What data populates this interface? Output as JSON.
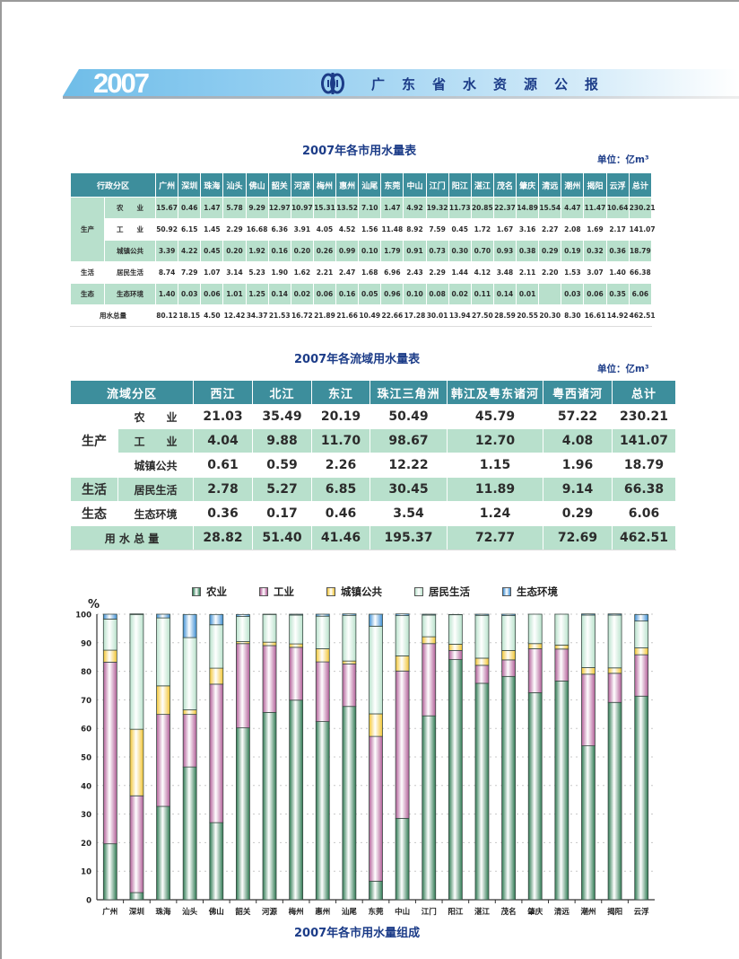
{
  "header": {
    "year": "2007",
    "title": "广东省水资源公报",
    "logo_icon": "water-resources-logo-icon"
  },
  "table1": {
    "caption": "2007年各市用水量表",
    "unit": "单位：亿m³",
    "corner_header": "行政分区",
    "columns": [
      "广州",
      "深圳",
      "珠海",
      "汕头",
      "佛山",
      "韶关",
      "河源",
      "梅州",
      "惠州",
      "汕尾",
      "东莞",
      "中山",
      "江门",
      "阳江",
      "湛江",
      "茂名",
      "肇庆",
      "清远",
      "潮州",
      "揭阳",
      "云浮",
      "总计"
    ],
    "groups": {
      "production": "生产",
      "living": "生活",
      "ecology": "生态"
    },
    "rows": [
      {
        "group": "生产",
        "label": "农　　业",
        "values": [
          "15.67",
          "0.46",
          "1.47",
          "5.78",
          "9.29",
          "12.97",
          "10.97",
          "15.31",
          "13.52",
          "7.10",
          "1.47",
          "4.92",
          "19.32",
          "11.73",
          "20.85",
          "22.37",
          "14.89",
          "15.54",
          "4.47",
          "11.47",
          "10.64",
          "230.21"
        ]
      },
      {
        "group": "生产",
        "label": "工　　业",
        "values": [
          "50.92",
          "6.15",
          "1.45",
          "2.29",
          "16.68",
          "6.36",
          "3.91",
          "4.05",
          "4.52",
          "1.56",
          "11.48",
          "8.92",
          "7.59",
          "0.45",
          "1.72",
          "1.67",
          "3.16",
          "2.27",
          "2.08",
          "1.69",
          "2.17",
          "141.07"
        ]
      },
      {
        "group": "生产",
        "label": "城镇公共",
        "values": [
          "3.39",
          "4.22",
          "0.45",
          "0.20",
          "1.92",
          "0.16",
          "0.20",
          "0.26",
          "0.99",
          "0.10",
          "1.79",
          "0.91",
          "0.73",
          "0.30",
          "0.70",
          "0.93",
          "0.38",
          "0.29",
          "0.19",
          "0.32",
          "0.36",
          "18.79"
        ]
      },
      {
        "group": "生活",
        "label": "居民生活",
        "values": [
          "8.74",
          "7.29",
          "1.07",
          "3.14",
          "5.23",
          "1.90",
          "1.62",
          "2.21",
          "2.47",
          "1.68",
          "6.96",
          "2.43",
          "2.29",
          "1.44",
          "4.12",
          "3.48",
          "2.11",
          "2.20",
          "1.53",
          "3.07",
          "1.40",
          "66.38"
        ]
      },
      {
        "group": "生态",
        "label": "生态环境",
        "values": [
          "1.40",
          "0.03",
          "0.06",
          "1.01",
          "1.25",
          "0.14",
          "0.02",
          "0.06",
          "0.16",
          "0.05",
          "0.96",
          "0.10",
          "0.08",
          "0.02",
          "0.11",
          "0.14",
          "0.01",
          "",
          "0.03",
          "0.06",
          "0.35",
          "6.06"
        ]
      }
    ],
    "total_row": {
      "label": "用水总量",
      "values": [
        "80.12",
        "18.15",
        "4.50",
        "12.42",
        "34.37",
        "21.53",
        "16.72",
        "21.89",
        "21.66",
        "10.49",
        "22.66",
        "17.28",
        "30.01",
        "13.94",
        "27.50",
        "28.59",
        "20.55",
        "20.30",
        "8.30",
        "16.61",
        "14.92",
        "462.51"
      ]
    }
  },
  "table2": {
    "caption": "2007年各流域用水量表",
    "unit": "单位：亿m³",
    "corner_header": "流域分区",
    "columns": [
      "西江",
      "北江",
      "东江",
      "珠江三角洲",
      "韩江及粤东诸河",
      "粤西诸河",
      "总计"
    ],
    "groups": {
      "production": "生产",
      "living": "生活",
      "ecology": "生态"
    },
    "rows": [
      {
        "group": "生产",
        "label": "农　　业",
        "values": [
          "21.03",
          "35.49",
          "20.19",
          "50.49",
          "45.79",
          "57.22",
          "230.21"
        ]
      },
      {
        "group": "生产",
        "label": "工　　业",
        "values": [
          "4.04",
          "9.88",
          "11.70",
          "98.67",
          "12.70",
          "4.08",
          "141.07"
        ]
      },
      {
        "group": "生产",
        "label": "城镇公共",
        "values": [
          "0.61",
          "0.59",
          "2.26",
          "12.22",
          "1.15",
          "1.96",
          "18.79"
        ]
      },
      {
        "group": "生活",
        "label": "居民生活",
        "values": [
          "2.78",
          "5.27",
          "6.85",
          "30.45",
          "11.89",
          "9.14",
          "66.38"
        ]
      },
      {
        "group": "生态",
        "label": "生态环境",
        "values": [
          "0.36",
          "0.17",
          "0.46",
          "3.54",
          "1.24",
          "0.29",
          "6.06"
        ]
      }
    ],
    "total_row": {
      "label": "用 水 总 量",
      "values": [
        "28.82",
        "51.40",
        "41.46",
        "195.37",
        "72.77",
        "72.69",
        "462.51"
      ]
    }
  },
  "chart_data": {
    "type": "bar",
    "stacked": true,
    "normalized_percent": true,
    "title": "2007年各市用水量组成",
    "xlabel": "",
    "ylabel": "%",
    "ylim": [
      0,
      100
    ],
    "yticks": [
      0,
      10,
      20,
      30,
      40,
      50,
      60,
      70,
      80,
      90,
      100
    ],
    "grid": "horizontal dotted",
    "legend_position": "top",
    "categories": [
      "广州",
      "深圳",
      "珠海",
      "汕头",
      "佛山",
      "韶关",
      "河源",
      "梅州",
      "惠州",
      "汕尾",
      "东莞",
      "中山",
      "江门",
      "阳江",
      "湛江",
      "茂名",
      "肇庆",
      "清远",
      "潮州",
      "揭阳",
      "云浮"
    ],
    "series": [
      {
        "name": "农业",
        "color": "#2e7a52",
        "values": [
          19.6,
          2.5,
          32.7,
          46.5,
          27.0,
          60.2,
          65.6,
          69.9,
          62.4,
          67.7,
          6.5,
          28.5,
          64.4,
          84.1,
          75.8,
          78.2,
          72.5,
          76.6,
          53.9,
          69.1,
          71.3
        ]
      },
      {
        "name": "工业",
        "color": "#b25e98",
        "values": [
          63.6,
          33.9,
          32.2,
          18.4,
          48.5,
          29.5,
          23.4,
          18.5,
          20.9,
          14.9,
          50.7,
          51.6,
          25.3,
          3.2,
          6.3,
          5.8,
          15.4,
          11.2,
          25.1,
          10.2,
          14.5
        ]
      },
      {
        "name": "城镇公共",
        "color": "#f2c533",
        "values": [
          4.2,
          23.3,
          10.0,
          1.6,
          5.6,
          0.7,
          1.2,
          1.2,
          4.6,
          1.0,
          7.9,
          5.3,
          2.4,
          2.2,
          2.5,
          3.3,
          1.8,
          1.4,
          2.3,
          1.9,
          2.4
        ]
      },
      {
        "name": "居民生活",
        "color": "#b9e2cc",
        "values": [
          10.9,
          40.2,
          23.8,
          25.3,
          15.2,
          8.8,
          9.7,
          10.1,
          11.4,
          16.0,
          30.7,
          14.1,
          7.6,
          10.3,
          15.0,
          12.2,
          10.3,
          10.8,
          18.4,
          18.5,
          9.4
        ]
      },
      {
        "name": "生态环境",
        "color": "#3e8fd4",
        "values": [
          1.7,
          0.2,
          1.3,
          8.1,
          3.6,
          0.7,
          0.1,
          0.3,
          0.7,
          0.5,
          4.2,
          0.6,
          0.3,
          0.1,
          0.4,
          0.5,
          0.0,
          0.0,
          0.4,
          0.4,
          2.3
        ]
      }
    ]
  }
}
